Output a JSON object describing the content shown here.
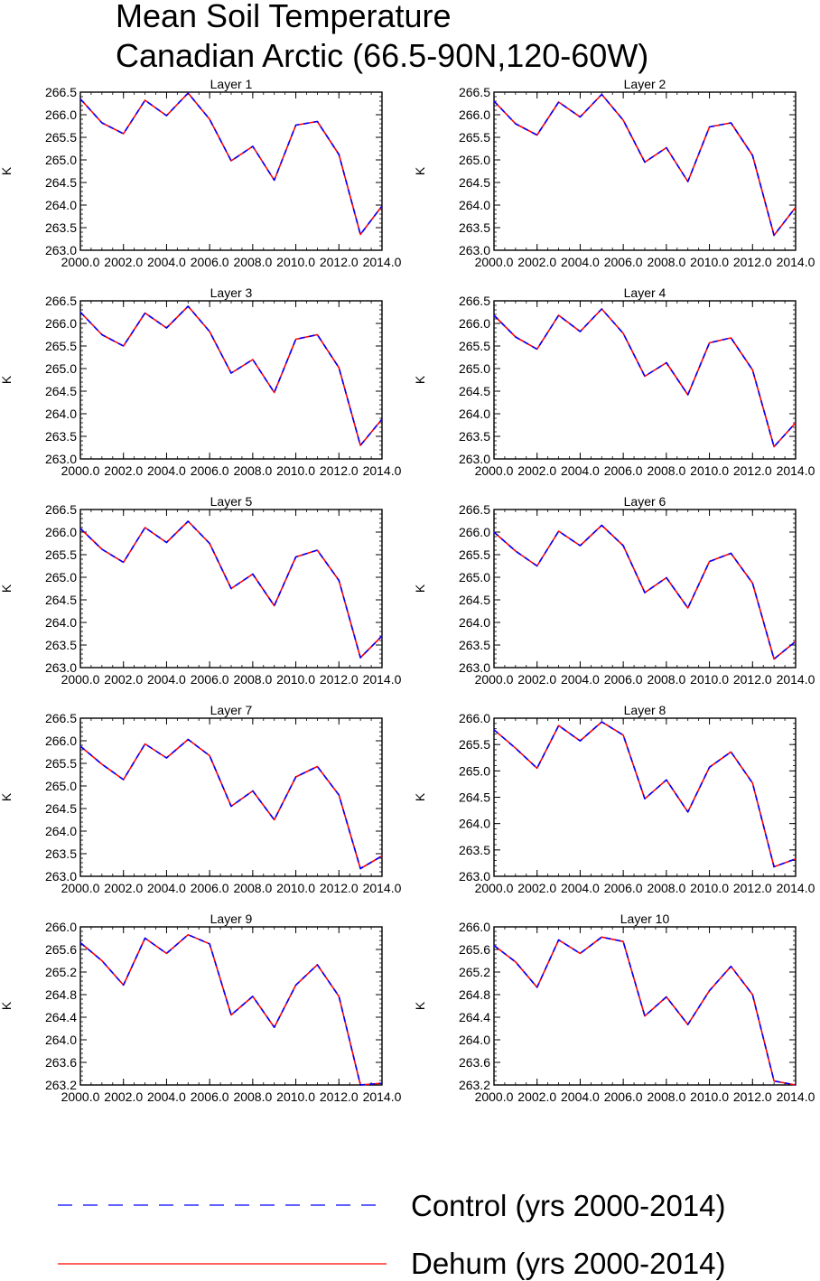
{
  "figure": {
    "title_line1": "Mean Soil Temperature",
    "title_line2": "Canadian Arctic (66.5-90N,120-60W)"
  },
  "legend": {
    "control_label": "Control (yrs 2000-2014)",
    "dehum_label": "Dehum (yrs 2000-2014)",
    "control_color": "#0000ff",
    "dehum_color": "#ff0000",
    "control_style": "dashed",
    "dehum_style": "solid"
  },
  "chart_data": [
    {
      "type": "line",
      "title": "Layer 1",
      "xlabel": "",
      "ylabel": "K",
      "xlim": [
        2000,
        2014
      ],
      "ylim": [
        263.0,
        266.5
      ],
      "xticks": [
        "2000.0",
        "2002.0",
        "2004.0",
        "2006.0",
        "2008.0",
        "2010.0",
        "2012.0",
        "2014.0"
      ],
      "yticks": [
        "263.0",
        "263.5",
        "264.0",
        "264.5",
        "265.0",
        "265.5",
        "266.0",
        "266.5"
      ],
      "x": [
        2000,
        2001,
        2002,
        2003,
        2004,
        2005,
        2006,
        2007,
        2008,
        2009,
        2010,
        2011,
        2012,
        2013,
        2014
      ],
      "series": [
        {
          "name": "Control (yrs 2000-2014)",
          "values": [
            266.35,
            265.82,
            265.58,
            266.32,
            265.98,
            266.48,
            265.9,
            264.98,
            265.3,
            264.55,
            265.77,
            265.85,
            265.12,
            263.35,
            263.98
          ]
        },
        {
          "name": "Dehum (yrs 2000-2014)",
          "values": [
            266.35,
            265.82,
            265.58,
            266.32,
            265.98,
            266.48,
            265.9,
            264.98,
            265.3,
            264.55,
            265.77,
            265.85,
            265.12,
            263.35,
            263.98
          ]
        }
      ]
    },
    {
      "type": "line",
      "title": "Layer 2",
      "xlabel": "",
      "ylabel": "K",
      "xlim": [
        2000,
        2014
      ],
      "ylim": [
        263.0,
        266.5
      ],
      "xticks": [
        "2000.0",
        "2002.0",
        "2004.0",
        "2006.0",
        "2008.0",
        "2010.0",
        "2012.0",
        "2014.0"
      ],
      "yticks": [
        "263.0",
        "263.5",
        "264.0",
        "264.5",
        "265.0",
        "265.5",
        "266.0",
        "266.5"
      ],
      "x": [
        2000,
        2001,
        2002,
        2003,
        2004,
        2005,
        2006,
        2007,
        2008,
        2009,
        2010,
        2011,
        2012,
        2013,
        2014
      ],
      "series": [
        {
          "name": "Control (yrs 2000-2014)",
          "values": [
            266.3,
            265.8,
            265.55,
            266.28,
            265.95,
            266.45,
            265.88,
            264.95,
            265.27,
            264.52,
            265.73,
            265.82,
            265.1,
            263.33,
            263.95
          ]
        },
        {
          "name": "Dehum (yrs 2000-2014)",
          "values": [
            266.3,
            265.8,
            265.55,
            266.28,
            265.95,
            266.45,
            265.88,
            264.95,
            265.27,
            264.52,
            265.73,
            265.82,
            265.1,
            263.33,
            263.95
          ]
        }
      ]
    },
    {
      "type": "line",
      "title": "Layer 3",
      "xlabel": "",
      "ylabel": "K",
      "xlim": [
        2000,
        2014
      ],
      "ylim": [
        263.0,
        266.5
      ],
      "xticks": [
        "2000.0",
        "2002.0",
        "2004.0",
        "2006.0",
        "2008.0",
        "2010.0",
        "2012.0",
        "2014.0"
      ],
      "yticks": [
        "263.0",
        "263.5",
        "264.0",
        "264.5",
        "265.0",
        "265.5",
        "266.0",
        "266.5"
      ],
      "x": [
        2000,
        2001,
        2002,
        2003,
        2004,
        2005,
        2006,
        2007,
        2008,
        2009,
        2010,
        2011,
        2012,
        2013,
        2014
      ],
      "series": [
        {
          "name": "Control (yrs 2000-2014)",
          "values": [
            266.25,
            265.75,
            265.5,
            266.23,
            265.9,
            266.38,
            265.82,
            264.9,
            265.2,
            264.47,
            265.65,
            265.75,
            265.02,
            263.3,
            263.88
          ]
        },
        {
          "name": "Dehum (yrs 2000-2014)",
          "values": [
            266.25,
            265.75,
            265.5,
            266.23,
            265.9,
            266.38,
            265.82,
            264.9,
            265.2,
            264.47,
            265.65,
            265.75,
            265.02,
            263.3,
            263.88
          ]
        }
      ]
    },
    {
      "type": "line",
      "title": "Layer 4",
      "xlabel": "",
      "ylabel": "K",
      "xlim": [
        2000,
        2014
      ],
      "ylim": [
        263.0,
        266.5
      ],
      "xticks": [
        "2000.0",
        "2002.0",
        "2004.0",
        "2006.0",
        "2008.0",
        "2010.0",
        "2012.0",
        "2014.0"
      ],
      "yticks": [
        "263.0",
        "263.5",
        "264.0",
        "264.5",
        "265.0",
        "265.5",
        "266.0",
        "266.5"
      ],
      "x": [
        2000,
        2001,
        2002,
        2003,
        2004,
        2005,
        2006,
        2007,
        2008,
        2009,
        2010,
        2011,
        2012,
        2013,
        2014
      ],
      "series": [
        {
          "name": "Control (yrs 2000-2014)",
          "values": [
            266.18,
            265.7,
            265.43,
            266.18,
            265.82,
            266.32,
            265.78,
            264.83,
            265.13,
            264.42,
            265.57,
            265.68,
            264.97,
            263.27,
            263.8
          ]
        },
        {
          "name": "Dehum (yrs 2000-2014)",
          "values": [
            266.18,
            265.7,
            265.43,
            266.18,
            265.82,
            266.32,
            265.78,
            264.83,
            265.13,
            264.42,
            265.57,
            265.68,
            264.97,
            263.27,
            263.8
          ]
        }
      ]
    },
    {
      "type": "line",
      "title": "Layer 5",
      "xlabel": "",
      "ylabel": "K",
      "xlim": [
        2000,
        2014
      ],
      "ylim": [
        263.0,
        266.5
      ],
      "xticks": [
        "2000.0",
        "2002.0",
        "2004.0",
        "2006.0",
        "2008.0",
        "2010.0",
        "2012.0",
        "2014.0"
      ],
      "yticks": [
        "263.0",
        "263.5",
        "264.0",
        "264.5",
        "265.0",
        "265.5",
        "266.0",
        "266.5"
      ],
      "x": [
        2000,
        2001,
        2002,
        2003,
        2004,
        2005,
        2006,
        2007,
        2008,
        2009,
        2010,
        2011,
        2012,
        2013,
        2014
      ],
      "series": [
        {
          "name": "Control (yrs 2000-2014)",
          "values": [
            266.08,
            265.62,
            265.33,
            266.1,
            265.77,
            266.24,
            265.75,
            264.75,
            265.07,
            264.37,
            265.45,
            265.6,
            264.93,
            263.22,
            263.7
          ]
        },
        {
          "name": "Dehum (yrs 2000-2014)",
          "values": [
            266.08,
            265.62,
            265.33,
            266.1,
            265.77,
            266.24,
            265.75,
            264.75,
            265.07,
            264.37,
            265.45,
            265.6,
            264.93,
            263.22,
            263.7
          ]
        }
      ]
    },
    {
      "type": "line",
      "title": "Layer 6",
      "xlabel": "",
      "ylabel": "K",
      "xlim": [
        2000,
        2014
      ],
      "ylim": [
        263.0,
        266.5
      ],
      "xticks": [
        "2000.0",
        "2002.0",
        "2004.0",
        "2006.0",
        "2008.0",
        "2010.0",
        "2012.0",
        "2014.0"
      ],
      "yticks": [
        "263.0",
        "263.5",
        "264.0",
        "264.5",
        "265.0",
        "265.5",
        "266.0",
        "266.5"
      ],
      "x": [
        2000,
        2001,
        2002,
        2003,
        2004,
        2005,
        2006,
        2007,
        2008,
        2009,
        2010,
        2011,
        2012,
        2013,
        2014
      ],
      "series": [
        {
          "name": "Control (yrs 2000-2014)",
          "values": [
            266.0,
            265.58,
            265.25,
            266.02,
            265.7,
            266.15,
            265.7,
            264.66,
            264.99,
            264.32,
            265.35,
            265.53,
            264.87,
            263.19,
            263.58
          ]
        },
        {
          "name": "Dehum (yrs 2000-2014)",
          "values": [
            266.0,
            265.58,
            265.25,
            266.02,
            265.7,
            266.15,
            265.7,
            264.66,
            264.99,
            264.32,
            265.35,
            265.53,
            264.87,
            263.19,
            263.58
          ]
        }
      ]
    },
    {
      "type": "line",
      "title": "Layer 7",
      "xlabel": "",
      "ylabel": "K",
      "xlim": [
        2000,
        2014
      ],
      "ylim": [
        263.0,
        266.5
      ],
      "xticks": [
        "2000.0",
        "2002.0",
        "2004.0",
        "2006.0",
        "2008.0",
        "2010.0",
        "2012.0",
        "2014.0"
      ],
      "yticks": [
        "263.0",
        "263.5",
        "264.0",
        "264.5",
        "265.0",
        "265.5",
        "266.0",
        "266.5"
      ],
      "x": [
        2000,
        2001,
        2002,
        2003,
        2004,
        2005,
        2006,
        2007,
        2008,
        2009,
        2010,
        2011,
        2012,
        2013,
        2014
      ],
      "series": [
        {
          "name": "Control (yrs 2000-2014)",
          "values": [
            265.88,
            265.48,
            265.14,
            265.93,
            265.62,
            266.03,
            265.67,
            264.55,
            264.89,
            264.25,
            265.2,
            265.43,
            264.8,
            263.17,
            263.45
          ]
        },
        {
          "name": "Dehum (yrs 2000-2014)",
          "values": [
            265.88,
            265.48,
            265.14,
            265.93,
            265.62,
            266.03,
            265.67,
            264.55,
            264.89,
            264.25,
            265.2,
            265.43,
            264.8,
            263.17,
            263.45
          ]
        }
      ]
    },
    {
      "type": "line",
      "title": "Layer 8",
      "xlabel": "",
      "ylabel": "K",
      "xlim": [
        2000,
        2014
      ],
      "ylim": [
        263.0,
        266.0
      ],
      "xticks": [
        "2000.0",
        "2002.0",
        "2004.0",
        "2006.0",
        "2008.0",
        "2010.0",
        "2012.0",
        "2014.0"
      ],
      "yticks": [
        "263.0",
        "263.5",
        "264.0",
        "264.5",
        "265.0",
        "265.5",
        "266.0"
      ],
      "x": [
        2000,
        2001,
        2002,
        2003,
        2004,
        2005,
        2006,
        2007,
        2008,
        2009,
        2010,
        2011,
        2012,
        2013,
        2014
      ],
      "series": [
        {
          "name": "Control (yrs 2000-2014)",
          "values": [
            265.78,
            265.43,
            265.05,
            265.86,
            265.57,
            265.93,
            265.68,
            264.47,
            264.83,
            264.22,
            265.07,
            265.36,
            264.77,
            263.18,
            263.33
          ]
        },
        {
          "name": "Dehum (yrs 2000-2014)",
          "values": [
            265.78,
            265.43,
            265.05,
            265.86,
            265.57,
            265.93,
            265.68,
            264.47,
            264.83,
            264.22,
            265.07,
            265.36,
            264.77,
            263.18,
            263.33
          ]
        }
      ]
    },
    {
      "type": "line",
      "title": "Layer 9",
      "xlabel": "",
      "ylabel": "K",
      "xlim": [
        2000,
        2014
      ],
      "ylim": [
        263.2,
        266.0
      ],
      "xticks": [
        "2000.0",
        "2002.0",
        "2004.0",
        "2006.0",
        "2008.0",
        "2010.0",
        "2012.0",
        "2014.0"
      ],
      "yticks": [
        "263.2",
        "263.6",
        "264.0",
        "264.4",
        "264.8",
        "265.2",
        "265.6",
        "266.0"
      ],
      "x": [
        2000,
        2001,
        2002,
        2003,
        2004,
        2005,
        2006,
        2007,
        2008,
        2009,
        2010,
        2011,
        2012,
        2013,
        2014
      ],
      "series": [
        {
          "name": "Control (yrs 2000-2014)",
          "values": [
            265.72,
            265.4,
            264.97,
            265.8,
            265.53,
            265.86,
            265.7,
            264.44,
            264.77,
            264.22,
            264.97,
            265.33,
            264.77,
            263.2,
            263.23
          ]
        },
        {
          "name": "Dehum (yrs 2000-2014)",
          "values": [
            265.72,
            265.4,
            264.97,
            265.8,
            265.53,
            265.86,
            265.7,
            264.44,
            264.77,
            264.22,
            264.97,
            265.33,
            264.77,
            263.2,
            263.23
          ]
        }
      ]
    },
    {
      "type": "line",
      "title": "Layer 10",
      "xlabel": "",
      "ylabel": "K",
      "xlim": [
        2000,
        2014
      ],
      "ylim": [
        263.2,
        266.0
      ],
      "xticks": [
        "2000.0",
        "2002.0",
        "2004.0",
        "2006.0",
        "2008.0",
        "2010.0",
        "2012.0",
        "2014.0"
      ],
      "yticks": [
        "263.2",
        "263.6",
        "264.0",
        "264.4",
        "264.8",
        "265.2",
        "265.6",
        "266.0"
      ],
      "x": [
        2000,
        2001,
        2002,
        2003,
        2004,
        2005,
        2006,
        2007,
        2008,
        2009,
        2010,
        2011,
        2012,
        2013,
        2014
      ],
      "series": [
        {
          "name": "Control (yrs 2000-2014)",
          "values": [
            265.67,
            265.38,
            264.93,
            265.77,
            265.53,
            265.82,
            265.74,
            264.42,
            264.76,
            264.27,
            264.87,
            265.3,
            264.8,
            263.27,
            263.2
          ]
        },
        {
          "name": "Dehum (yrs 2000-2014)",
          "values": [
            265.67,
            265.38,
            264.93,
            265.77,
            265.53,
            265.82,
            265.74,
            264.42,
            264.76,
            264.27,
            264.87,
            265.3,
            264.8,
            263.27,
            263.2
          ]
        }
      ]
    }
  ]
}
